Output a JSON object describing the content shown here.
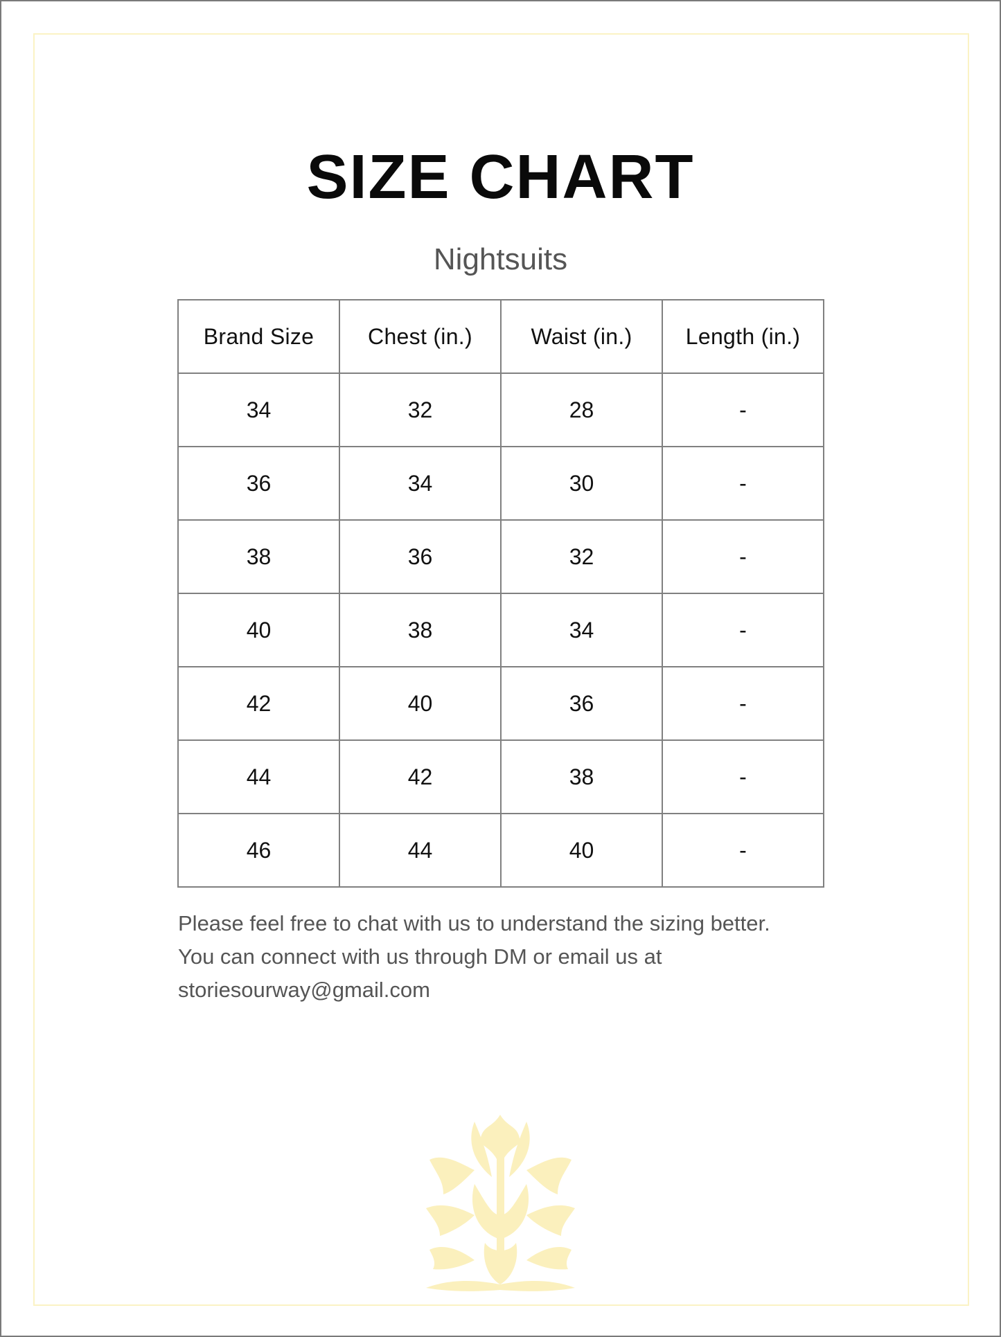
{
  "title": "SIZE CHART",
  "subtitle": "Nightsuits",
  "table": {
    "headers": [
      "Brand Size",
      "Chest (in.)",
      "Waist (in.)",
      "Length (in.)"
    ],
    "rows": [
      [
        "34",
        "32",
        "28",
        "-"
      ],
      [
        "36",
        "34",
        "30",
        "-"
      ],
      [
        "38",
        "36",
        "32",
        "-"
      ],
      [
        "40",
        "38",
        "34",
        "-"
      ],
      [
        "42",
        "40",
        "36",
        "-"
      ],
      [
        "44",
        "42",
        "38",
        "-"
      ],
      [
        "46",
        "44",
        "40",
        "-"
      ]
    ]
  },
  "note": {
    "lines": [
      "Please feel free to chat with us to understand the sizing better.",
      "You can connect with us through DM or email us at",
      "storiesourway@gmail.com"
    ]
  },
  "colors": {
    "border_outer": "#7a7a7a",
    "border_inner": "#fbf3c4",
    "ornament": "#fbf0bd",
    "table_border": "#808080"
  },
  "ornament_icon": "floral-ornament-icon"
}
